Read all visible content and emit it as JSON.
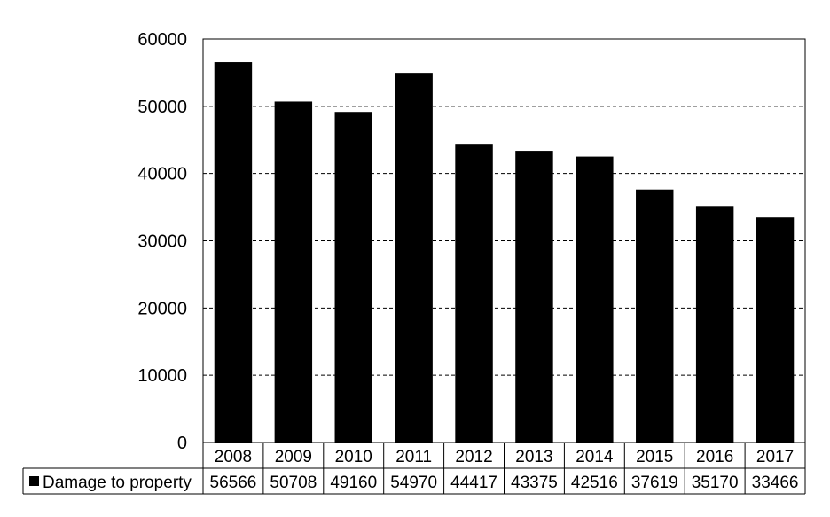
{
  "chart_data": {
    "type": "bar",
    "categories": [
      "2008",
      "2009",
      "2010",
      "2011",
      "2012",
      "2013",
      "2014",
      "2015",
      "2016",
      "2017"
    ],
    "series": [
      {
        "name": "Damage to property",
        "values": [
          56566,
          50708,
          49160,
          54970,
          44417,
          43375,
          42516,
          37619,
          35170,
          33466
        ],
        "color": "#000000"
      }
    ],
    "yticks": [
      "0",
      "10000",
      "20000",
      "30000",
      "40000",
      "50000",
      "60000"
    ],
    "ylim": [
      0,
      60000
    ],
    "grid": "horizontal-dashed",
    "legend": "data-table",
    "title": "",
    "xlabel": "",
    "ylabel": ""
  }
}
